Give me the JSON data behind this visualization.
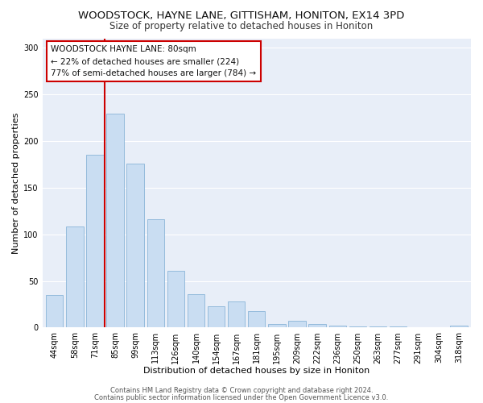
{
  "title": "WOODSTOCK, HAYNE LANE, GITTISHAM, HONITON, EX14 3PD",
  "subtitle": "Size of property relative to detached houses in Honiton",
  "xlabel": "Distribution of detached houses by size in Honiton",
  "ylabel": "Number of detached properties",
  "bar_labels": [
    "44sqm",
    "58sqm",
    "71sqm",
    "85sqm",
    "99sqm",
    "113sqm",
    "126sqm",
    "140sqm",
    "154sqm",
    "167sqm",
    "181sqm",
    "195sqm",
    "209sqm",
    "222sqm",
    "236sqm",
    "250sqm",
    "263sqm",
    "277sqm",
    "291sqm",
    "304sqm",
    "318sqm"
  ],
  "bar_values": [
    35,
    108,
    185,
    229,
    176,
    116,
    61,
    36,
    23,
    28,
    18,
    4,
    7,
    4,
    2,
    1,
    1,
    1,
    0,
    0,
    2
  ],
  "bar_color": "#c9ddf2",
  "bar_edge_color": "#8ab4d8",
  "vline_x": 2.5,
  "vline_color": "#cc0000",
  "ylim": [
    0,
    310
  ],
  "yticks": [
    0,
    50,
    100,
    150,
    200,
    250,
    300
  ],
  "annotation_title": "WOODSTOCK HAYNE LANE: 80sqm",
  "annotation_line1": "← 22% of detached houses are smaller (224)",
  "annotation_line2": "77% of semi-detached houses are larger (784) →",
  "annotation_box_color": "#ffffff",
  "annotation_box_edge": "#cc0000",
  "footer1": "Contains HM Land Registry data © Crown copyright and database right 2024.",
  "footer2": "Contains public sector information licensed under the Open Government Licence v3.0.",
  "fig_background_color": "#ffffff",
  "plot_background_color": "#e8eef8",
  "grid_color": "#ffffff",
  "title_fontsize": 9.5,
  "subtitle_fontsize": 8.5,
  "axis_label_fontsize": 8,
  "tick_fontsize": 7,
  "annotation_fontsize": 7.5,
  "footer_fontsize": 6
}
